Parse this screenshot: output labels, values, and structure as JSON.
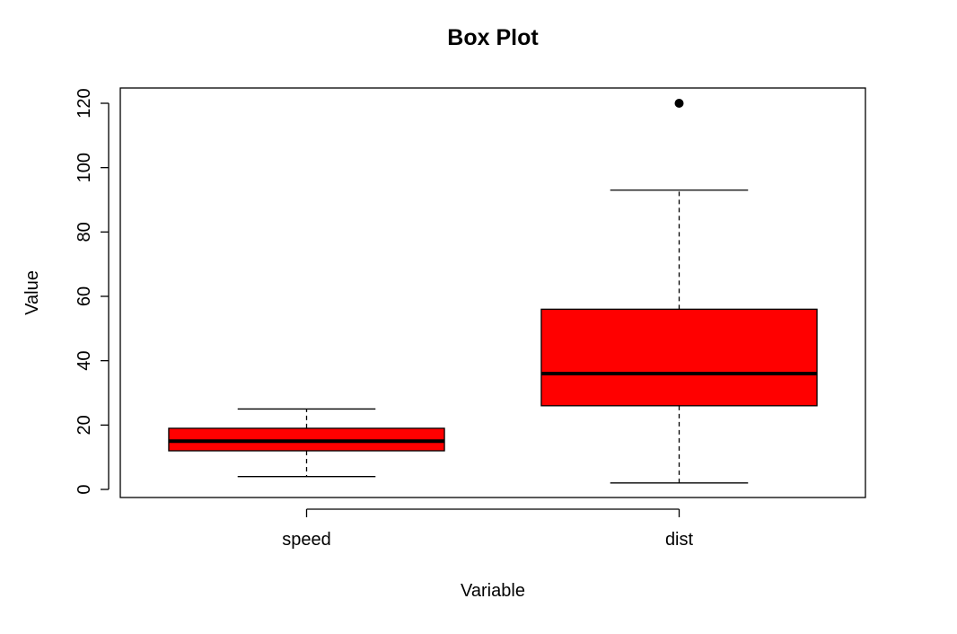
{
  "chart_data": {
    "type": "boxplot",
    "title": "Box Plot",
    "xlabel": "Variable",
    "ylabel": "Value",
    "ylim": [
      0,
      120
    ],
    "yticks": [
      0,
      20,
      40,
      60,
      80,
      100,
      120
    ],
    "fill_color": "#ff0000",
    "categories": [
      "speed",
      "dist"
    ],
    "series": [
      {
        "category": "speed",
        "whisker_low": 4,
        "q1": 12,
        "median": 15,
        "q3": 19,
        "whisker_high": 25,
        "outliers": []
      },
      {
        "category": "dist",
        "whisker_low": 2,
        "q1": 26,
        "median": 36,
        "q3": 56,
        "whisker_high": 93,
        "outliers": [
          120
        ]
      }
    ]
  }
}
